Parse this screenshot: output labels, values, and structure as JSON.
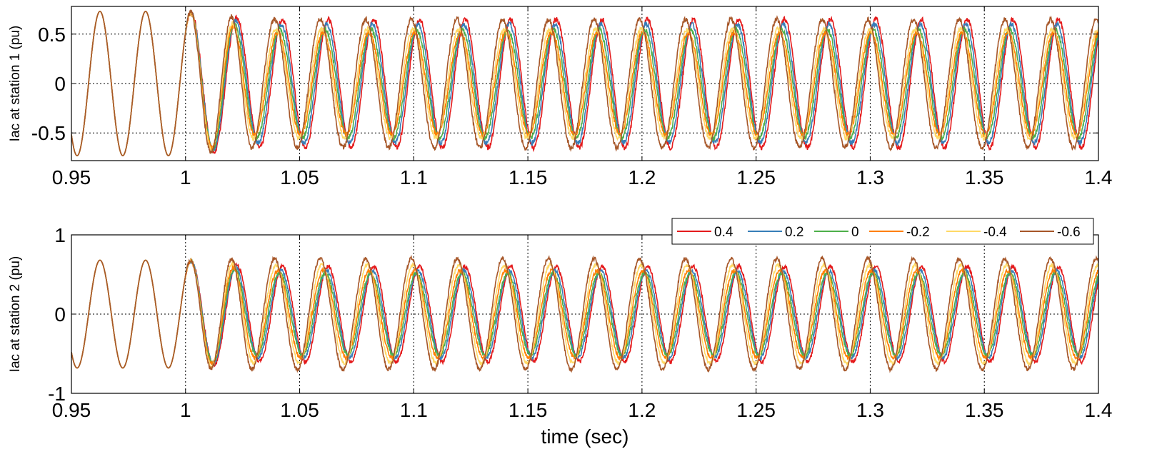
{
  "chart_data": [
    {
      "type": "line",
      "ylabel": "Iac at station 1 (pu)",
      "xlabel": "",
      "xlim": [
        0.95,
        1.4
      ],
      "ylim": [
        -0.78,
        0.78
      ],
      "xticks": [
        "0.95",
        "1",
        "1.05",
        "1.1",
        "1.15",
        "1.2",
        "1.25",
        "1.3",
        "1.35",
        "1.4"
      ],
      "yticks": [
        "0.5",
        "0",
        "-0.5"
      ],
      "ytick_values": [
        0.5,
        0,
        -0.5
      ],
      "grid": "dotted",
      "legend": "none",
      "waveform": {
        "frequency_hz": 50,
        "pre_disturbance_amplitude": 0.73,
        "disturbance_time": 1.0,
        "settle_time_sec": 0.03
      },
      "series": [
        {
          "name": "0.4",
          "color": "#e41a1c",
          "amplitude": 0.65,
          "phase_lead_deg": 0
        },
        {
          "name": "0.2",
          "color": "#377eb8",
          "amplitude": 0.6,
          "phase_lead_deg": 12
        },
        {
          "name": "0",
          "color": "#4daf4a",
          "amplitude": 0.55,
          "phase_lead_deg": 24
        },
        {
          "name": "-0.2",
          "color": "#ff7f00",
          "amplitude": 0.52,
          "phase_lead_deg": 38
        },
        {
          "name": "-0.4",
          "color": "#ffd966",
          "amplitude": 0.55,
          "phase_lead_deg": 50
        },
        {
          "name": "-0.6",
          "color": "#a65628",
          "amplitude": 0.65,
          "phase_lead_deg": 63
        }
      ]
    },
    {
      "type": "line",
      "ylabel": "Iac at station 2 (pu)",
      "xlabel": "time (sec)",
      "xlim": [
        0.95,
        1.4
      ],
      "ylim": [
        -1,
        1
      ],
      "xticks": [
        "0.95",
        "1",
        "1.05",
        "1.1",
        "1.15",
        "1.2",
        "1.25",
        "1.3",
        "1.35",
        "1.4"
      ],
      "yticks": [
        "1",
        "0",
        "-1"
      ],
      "ytick_values": [
        1,
        0,
        -1
      ],
      "grid": "dotted",
      "legend": "top-right",
      "waveform": {
        "frequency_hz": 50,
        "pre_disturbance_amplitude": 0.68,
        "disturbance_time": 1.0,
        "settle_time_sec": 0.03
      },
      "series": [
        {
          "name": "0.4",
          "color": "#e41a1c",
          "amplitude": 0.6,
          "phase_lead_deg": 0
        },
        {
          "name": "0.2",
          "color": "#377eb8",
          "amplitude": 0.55,
          "phase_lead_deg": 12
        },
        {
          "name": "0",
          "color": "#4daf4a",
          "amplitude": 0.52,
          "phase_lead_deg": 24
        },
        {
          "name": "-0.2",
          "color": "#ff7f00",
          "amplitude": 0.55,
          "phase_lead_deg": 38
        },
        {
          "name": "-0.4",
          "color": "#ffd966",
          "amplitude": 0.62,
          "phase_lead_deg": 50
        },
        {
          "name": "-0.6",
          "color": "#a65628",
          "amplitude": 0.7,
          "phase_lead_deg": 63
        }
      ]
    }
  ]
}
